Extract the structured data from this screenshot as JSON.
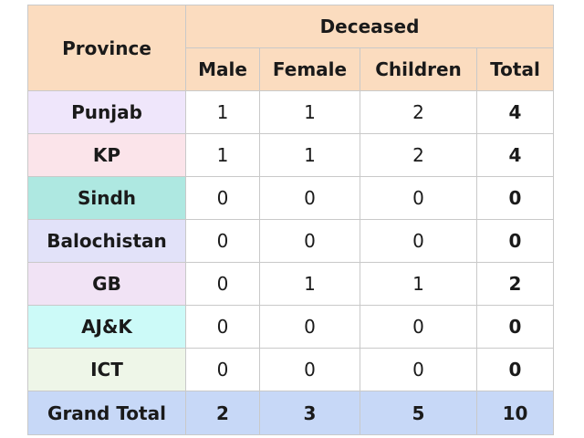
{
  "headers": {
    "province": "Province",
    "group": "Deceased",
    "cols": [
      "Male",
      "Female",
      "Children",
      "Total"
    ]
  },
  "rows": [
    {
      "province": "Punjab",
      "male": "1",
      "female": "1",
      "children": "2",
      "total": "4",
      "color": "#efe6fb"
    },
    {
      "province": "KP",
      "male": "1",
      "female": "1",
      "children": "2",
      "total": "4",
      "color": "#fbe4ea"
    },
    {
      "province": "Sindh",
      "male": "0",
      "female": "0",
      "children": "0",
      "total": "0",
      "color": "#aee8e1"
    },
    {
      "province": "Balochistan",
      "male": "0",
      "female": "0",
      "children": "0",
      "total": "0",
      "color": "#e2e2f9"
    },
    {
      "province": "GB",
      "male": "0",
      "female": "1",
      "children": "1",
      "total": "2",
      "color": "#f1e3f5"
    },
    {
      "province": "AJ&K",
      "male": "0",
      "female": "0",
      "children": "0",
      "total": "0",
      "color": "#ccfaf8"
    },
    {
      "province": "ICT",
      "male": "0",
      "female": "0",
      "children": "0",
      "total": "0",
      "color": "#eef6e8"
    }
  ],
  "grand_total": {
    "label": "Grand Total",
    "male": "2",
    "female": "3",
    "children": "5",
    "total": "10"
  }
}
